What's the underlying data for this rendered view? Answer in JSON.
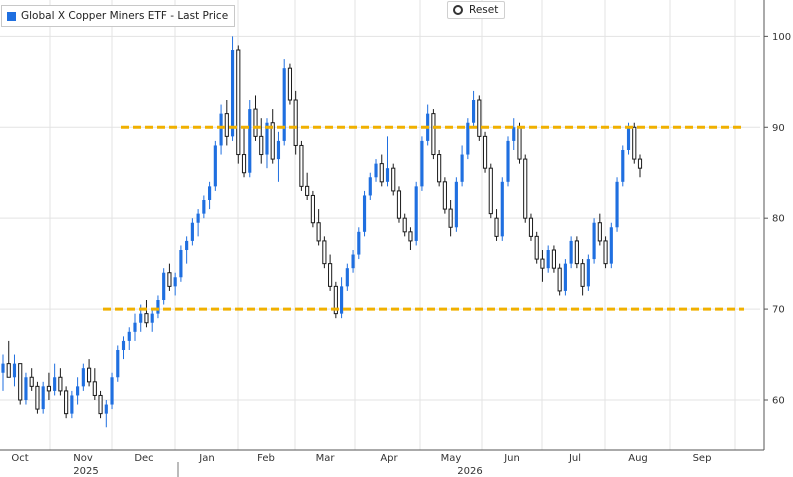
{
  "legend": {
    "label": "Global X Copper Miners ETF - Last Price",
    "color": "#1f6fe0"
  },
  "reset": {
    "label": "Reset"
  },
  "chart_data": {
    "type": "candlestick",
    "y_axis": {
      "range": [
        54.5,
        104
      ],
      "ticks": [
        60,
        70,
        80,
        90,
        100
      ],
      "position": "right"
    },
    "x_axis": {
      "months": [
        "Oct",
        "Nov",
        "Dec",
        "Jan",
        "Feb",
        "Mar",
        "Apr",
        "May",
        "Jun",
        "Jul",
        "Aug",
        "Sep"
      ],
      "years": [
        "2025",
        "2026"
      ]
    },
    "levels": [
      {
        "value": 90,
        "color": "#f0b000",
        "style": "dashed"
      },
      {
        "value": 70,
        "color": "#f0b000",
        "style": "dashed"
      }
    ],
    "colors": {
      "up": "#1f6fe0",
      "down": "#1a1a1a",
      "grid": "#e3e3e3"
    },
    "candles": [
      [
        63,
        65,
        61,
        64
      ],
      [
        64,
        66.5,
        62.5,
        62.5
      ],
      [
        62.5,
        65,
        61.5,
        64
      ],
      [
        64,
        64,
        59.5,
        60
      ],
      [
        60,
        63,
        59.5,
        62.5
      ],
      [
        62.5,
        63.5,
        61,
        61.5
      ],
      [
        61.5,
        62,
        58.5,
        59
      ],
      [
        59,
        62,
        58.5,
        61.5
      ],
      [
        61.5,
        63,
        60,
        61
      ],
      [
        61,
        64,
        60.5,
        62.5
      ],
      [
        62.5,
        63.5,
        60.5,
        61
      ],
      [
        61,
        61.5,
        58,
        58.5
      ],
      [
        58.5,
        61,
        58,
        60.5
      ],
      [
        60.5,
        62.5,
        59.5,
        61.5
      ],
      [
        61.5,
        64,
        61,
        63.5
      ],
      [
        63.5,
        64.5,
        61.5,
        62
      ],
      [
        62,
        63.5,
        60,
        60.5
      ],
      [
        60.5,
        61,
        58,
        58.5
      ],
      [
        58.5,
        60,
        57,
        59.5
      ],
      [
        59.5,
        63,
        59,
        62.5
      ],
      [
        62.5,
        66,
        62,
        65.5
      ],
      [
        65.5,
        67,
        64.5,
        66.5
      ],
      [
        66.5,
        68,
        65.5,
        67.5
      ],
      [
        67.5,
        69.5,
        66.5,
        68.5
      ],
      [
        68.5,
        70.5,
        67.5,
        69.5
      ],
      [
        69.5,
        71,
        68,
        68.5
      ],
      [
        68.5,
        70,
        67.5,
        69.5
      ],
      [
        69.5,
        71.5,
        69,
        71
      ],
      [
        71,
        74.5,
        70.5,
        74
      ],
      [
        74,
        75,
        72,
        72.5
      ],
      [
        72.5,
        74,
        71.5,
        73.5
      ],
      [
        73.5,
        77,
        73,
        76.5
      ],
      [
        76.5,
        78,
        75,
        77.5
      ],
      [
        77.5,
        80,
        77,
        79.5
      ],
      [
        79.5,
        81,
        78,
        80.5
      ],
      [
        80.5,
        82.5,
        80,
        82
      ],
      [
        82,
        84,
        81,
        83.5
      ],
      [
        83.5,
        88.5,
        83,
        88
      ],
      [
        88,
        92.5,
        87,
        91.5
      ],
      [
        91.5,
        93,
        88,
        89
      ],
      [
        89,
        100,
        88.5,
        98.5
      ],
      [
        98.5,
        99,
        86,
        87
      ],
      [
        87,
        90,
        84.5,
        85
      ],
      [
        85,
        93,
        84.5,
        92
      ],
      [
        92,
        93.5,
        88.5,
        89
      ],
      [
        89,
        91,
        86,
        87
      ],
      [
        87,
        91,
        85.5,
        90.5
      ],
      [
        90.5,
        92,
        86,
        86.5
      ],
      [
        86.5,
        89.5,
        84,
        88.5
      ],
      [
        88.5,
        97.5,
        88,
        96.5
      ],
      [
        96.5,
        97,
        92.5,
        93
      ],
      [
        93,
        94,
        87,
        88
      ],
      [
        88,
        88.5,
        83,
        83.5
      ],
      [
        83.5,
        85,
        82,
        82.5
      ],
      [
        82.5,
        83,
        79,
        79.5
      ],
      [
        79.5,
        81,
        77,
        77.5
      ],
      [
        77.5,
        78,
        74.5,
        75
      ],
      [
        75,
        76,
        72,
        72.5
      ],
      [
        72.5,
        73,
        69,
        69.5
      ],
      [
        69.5,
        73.5,
        69,
        72.5
      ],
      [
        72.5,
        75,
        72,
        74.5
      ],
      [
        74.5,
        76.5,
        74,
        76
      ],
      [
        76,
        79,
        75.5,
        78.5
      ],
      [
        78.5,
        83,
        78,
        82.5
      ],
      [
        82.5,
        85,
        82,
        84.5
      ],
      [
        84.5,
        86.5,
        84,
        86
      ],
      [
        86,
        87,
        83.5,
        84
      ],
      [
        84,
        89,
        83.5,
        85.5
      ],
      [
        85.5,
        86,
        82.5,
        83
      ],
      [
        83,
        83.5,
        79.5,
        80
      ],
      [
        80,
        80.5,
        78,
        78.5
      ],
      [
        78.5,
        79,
        76.5,
        77.5
      ],
      [
        77.5,
        84,
        77,
        83.5
      ],
      [
        83.5,
        89,
        83,
        88.5
      ],
      [
        88.5,
        92.5,
        88,
        91.5
      ],
      [
        91.5,
        92,
        86.5,
        87
      ],
      [
        87,
        87.5,
        83.5,
        84
      ],
      [
        84,
        84.5,
        80.5,
        81
      ],
      [
        81,
        82,
        78,
        79
      ],
      [
        79,
        84.5,
        78.5,
        84
      ],
      [
        84,
        88,
        83.5,
        87
      ],
      [
        87,
        91,
        86.5,
        90.5
      ],
      [
        90.5,
        94,
        90,
        93
      ],
      [
        93,
        93.5,
        88.5,
        89
      ],
      [
        89,
        89.5,
        85,
        85.5
      ],
      [
        85.5,
        86,
        80,
        80.5
      ],
      [
        80,
        81,
        77.5,
        78
      ],
      [
        78,
        84.5,
        77.5,
        84
      ],
      [
        84,
        89,
        83.5,
        88.5
      ],
      [
        88.5,
        91,
        87.5,
        90
      ],
      [
        90,
        90.5,
        86,
        86.5
      ],
      [
        86.5,
        87,
        79.5,
        80
      ],
      [
        80,
        80.5,
        77.5,
        78
      ],
      [
        78,
        78.5,
        75,
        75.5
      ],
      [
        75.5,
        76.5,
        73,
        74.5
      ],
      [
        74.5,
        77,
        74,
        76.5
      ],
      [
        76.5,
        77,
        74,
        74.5
      ],
      [
        74.5,
        75,
        71.5,
        72
      ],
      [
        72,
        75.5,
        71.5,
        75
      ],
      [
        75,
        78,
        74.5,
        77.5
      ],
      [
        77.5,
        78,
        74.5,
        75
      ],
      [
        75,
        75.5,
        71.5,
        72.5
      ],
      [
        72.5,
        76,
        72,
        75.5
      ],
      [
        75.5,
        80,
        75,
        79.5
      ],
      [
        79.5,
        80.5,
        77,
        77.5
      ],
      [
        77.5,
        78,
        74.5,
        75
      ],
      [
        75,
        79.5,
        74.5,
        79
      ],
      [
        79,
        84.5,
        78.5,
        84
      ],
      [
        84,
        88,
        83.5,
        87.5
      ],
      [
        87.5,
        90.5,
        87,
        90
      ],
      [
        90,
        90.5,
        86,
        86.5
      ],
      [
        86.5,
        87,
        84.5,
        85.5
      ]
    ]
  }
}
